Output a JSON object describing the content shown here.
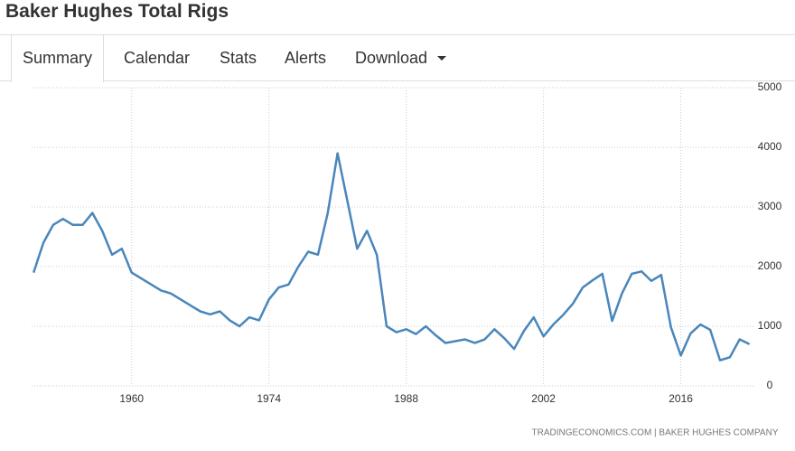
{
  "header": {
    "title": "Baker Hughes Total Rigs"
  },
  "tabs": [
    "Summary",
    "Calendar",
    "Stats",
    "Alerts",
    "Download"
  ],
  "chart_data": {
    "type": "line",
    "x": [
      1950,
      1951,
      1952,
      1953,
      1954,
      1955,
      1956,
      1957,
      1958,
      1959,
      1960,
      1961,
      1962,
      1963,
      1964,
      1965,
      1966,
      1967,
      1968,
      1969,
      1970,
      1971,
      1972,
      1973,
      1974,
      1975,
      1976,
      1977,
      1978,
      1979,
      1980,
      1981,
      1982,
      1983,
      1984,
      1985,
      1986,
      1987,
      1988,
      1989,
      1990,
      1991,
      1992,
      1993,
      1994,
      1995,
      1996,
      1997,
      1998,
      1999,
      2000,
      2001,
      2002,
      2003,
      2004,
      2005,
      2006,
      2007,
      2008,
      2009,
      2010,
      2011,
      2012,
      2013,
      2014,
      2015,
      2016,
      2017,
      2018,
      2019,
      2020,
      2021,
      2022,
      2023
    ],
    "series": [
      {
        "color": "#4a86bb",
        "values": [
          1900,
          2400,
          2700,
          2800,
          2700,
          2700,
          2900,
          2600,
          2200,
          2300,
          1900,
          1800,
          1700,
          1600,
          1550,
          1450,
          1350,
          1250,
          1200,
          1250,
          1100,
          1000,
          1150,
          1100,
          1450,
          1650,
          1700,
          2000,
          2250,
          2200,
          2900,
          3900,
          3100,
          2300,
          2600,
          2200,
          1000,
          900,
          950,
          870,
          1000,
          850,
          720,
          750,
          780,
          720,
          780,
          950,
          800,
          620,
          920,
          1150,
          830,
          1030,
          1190,
          1380,
          1650,
          1770,
          1880,
          1090,
          1550,
          1880,
          1920,
          1760,
          1860,
          980,
          510,
          880,
          1030,
          940,
          430,
          480,
          780,
          700
        ]
      }
    ],
    "xlim": [
      1949.8,
      2023.5
    ],
    "xticks": [
      1960,
      1974,
      1988,
      2002,
      2016
    ],
    "ylim": [
      0,
      5000
    ],
    "yticks": [
      0,
      1000,
      2000,
      3000,
      4000,
      5000
    ],
    "grid": true,
    "source": "TRADINGECONOMICS.COM | BAKER HUGHES COMPANY"
  }
}
